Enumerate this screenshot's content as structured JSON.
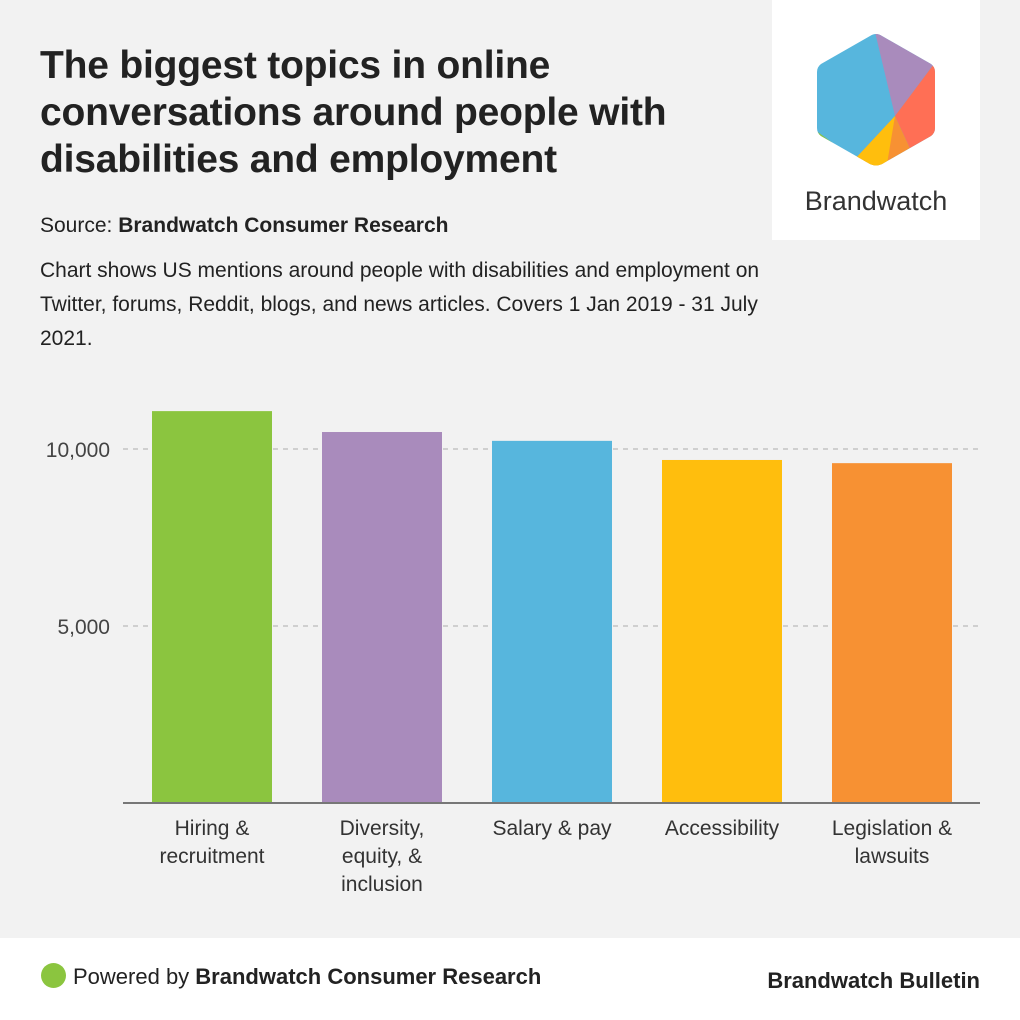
{
  "header": {
    "title": "The biggest topics in online conversations around people with disabilities and employment",
    "source_label": "Source: ",
    "source_name": "Brandwatch Consumer Research",
    "description": "Chart shows US mentions around people with disabilities and employment on Twitter, forums, Reddit, blogs, and news articles. Covers 1 Jan 2019 - 31 July 2021."
  },
  "logo": {
    "name": "Brandwatch",
    "icon": "brandwatch-hexagon-logo"
  },
  "footer": {
    "powered_label": "Powered by ",
    "powered_name": "Brandwatch Consumer Research",
    "brand": "Brandwatch Bulletin",
    "dot_color": "#8bc53f"
  },
  "chart_data": {
    "type": "bar",
    "title": "The biggest topics in online conversations around people with disabilities and employment",
    "xlabel": "",
    "ylabel": "",
    "categories": [
      [
        "Hiring &",
        "recruitment"
      ],
      [
        "Diversity,",
        "equity, &",
        "inclusion"
      ],
      [
        "Salary & pay"
      ],
      [
        "Accessibility"
      ],
      [
        "Legislation &",
        "lawsuits"
      ]
    ],
    "values": [
      11070,
      10480,
      10230,
      9690,
      9600
    ],
    "colors": [
      "#8bc53f",
      "#a98bbc",
      "#57b6dd",
      "#ffbe0d",
      "#f79133"
    ],
    "ylim": [
      0,
      12000
    ],
    "yticks": [
      5000,
      10000
    ],
    "ytick_labels": [
      "5,000",
      "10,000"
    ],
    "grid": true,
    "legend": "none"
  }
}
